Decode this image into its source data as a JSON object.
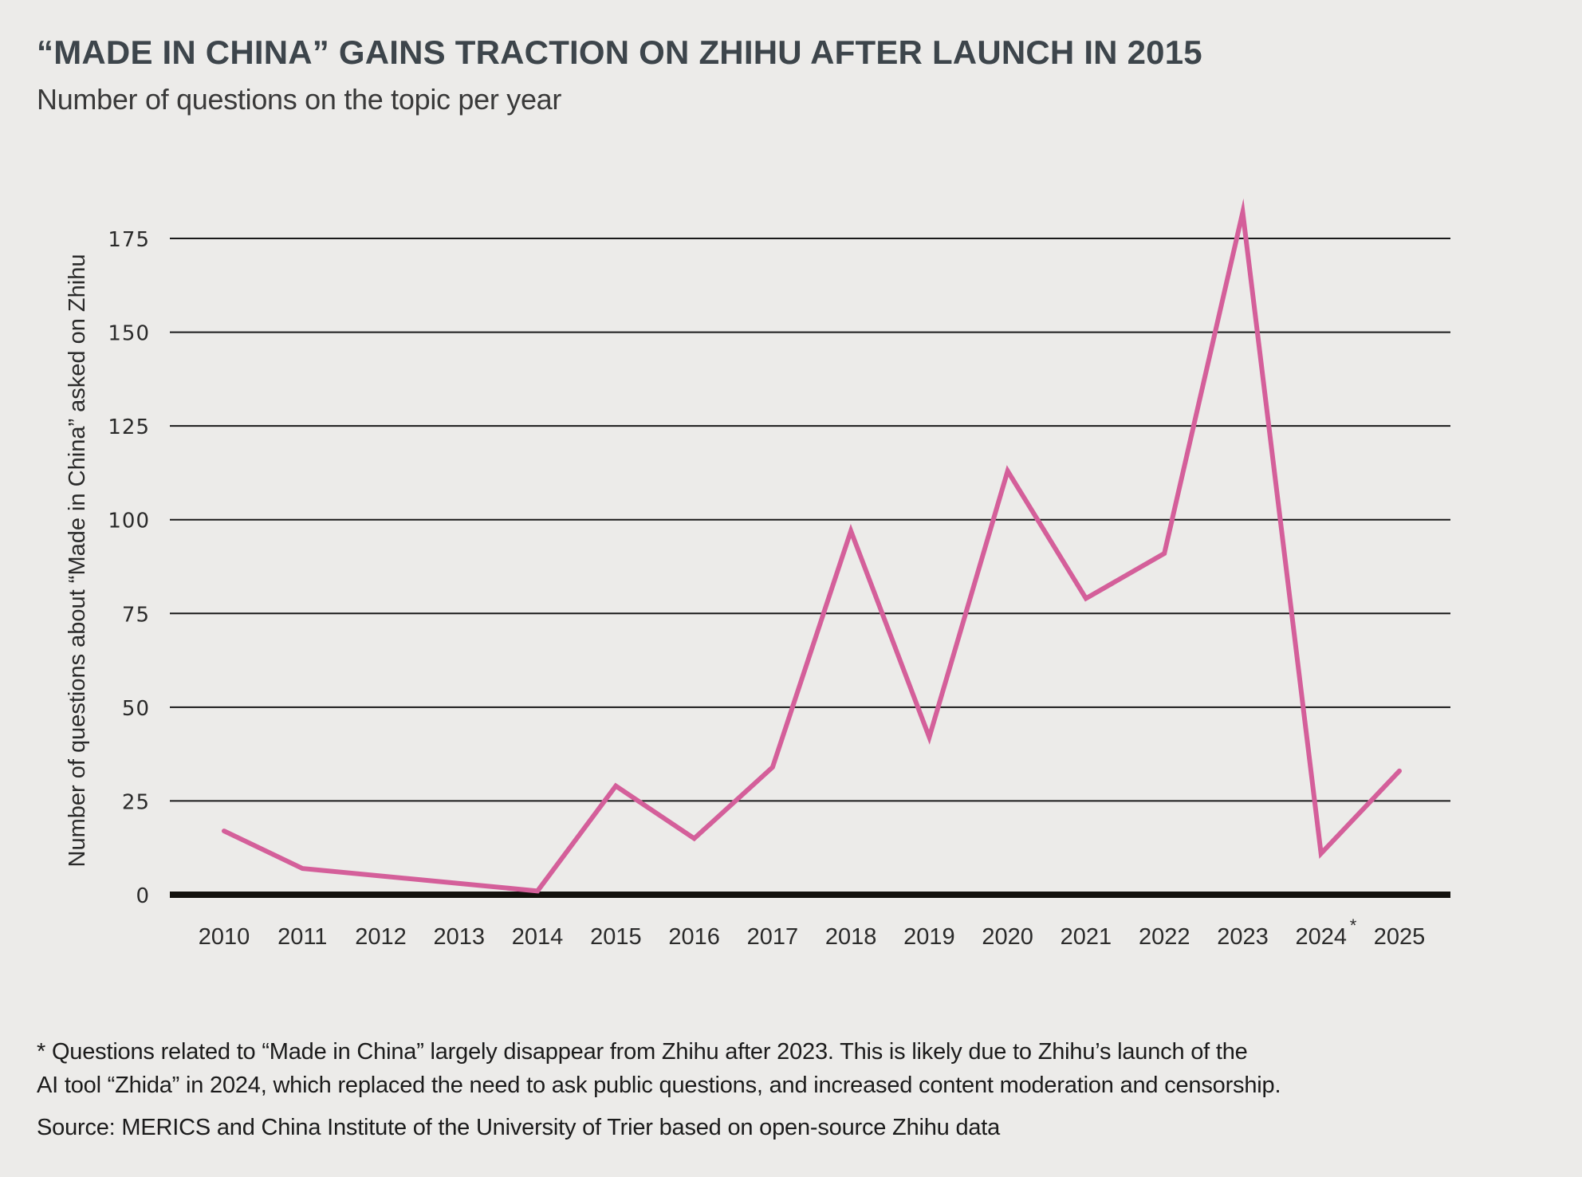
{
  "header": {
    "title": "“MADE IN CHINA” GAINS TRACTION ON ZHIHU AFTER LAUNCH IN 2015",
    "subtitle": "Number of questions on the topic per year"
  },
  "footer": {
    "footnote_line1": "* Questions related to “Made in China” largely disappear from Zhihu after 2023. This is likely due to Zhihu’s launch of the",
    "footnote_line2": "AI tool “Zhida” in 2024, which replaced the need to ask public questions, and increased content moderation and censorship.",
    "source": "Source: MERICS and China Institute of the University of Trier based on open-source Zhihu data"
  },
  "colors": {
    "background": "#ecebe9",
    "line": "#d45f9a",
    "gridline": "#1a1a1a",
    "baseline": "#12110c",
    "title": "#3d454b",
    "text": "#2a2a2a"
  },
  "chart_data": {
    "type": "line",
    "title": "“MADE IN CHINA” GAINS TRACTION ON ZHIHU AFTER LAUNCH IN 2015",
    "subtitle": "Number of questions on the topic per year",
    "xlabel": "",
    "ylabel": "Number of questions about “Made in China” asked on Zhihu",
    "categories": [
      "2010",
      "2011",
      "2012",
      "2013",
      "2014",
      "2015",
      "2016",
      "2017",
      "2018",
      "2019",
      "2020",
      "2021",
      "2022",
      "2023",
      "2024",
      "2025"
    ],
    "category_annotations": {
      "2024": "*"
    },
    "series": [
      {
        "name": "Questions per year",
        "values": [
          17,
          7,
          5,
          3,
          1,
          29,
          15,
          34,
          97,
          42,
          113,
          79,
          91,
          182,
          11,
          33
        ]
      }
    ],
    "ylim": [
      0,
      175
    ],
    "yticks": [
      0,
      25,
      50,
      75,
      100,
      125,
      150,
      175
    ],
    "grid": true,
    "legend": "none"
  }
}
